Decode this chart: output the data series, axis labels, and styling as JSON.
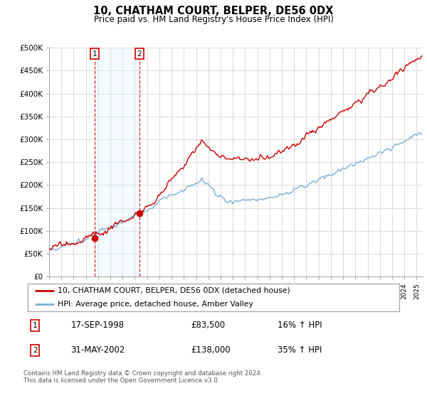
{
  "title": "10, CHATHAM COURT, BELPER, DE56 0DX",
  "subtitle": "Price paid vs. HM Land Registry's House Price Index (HPI)",
  "property_label": "10, CHATHAM COURT, BELPER, DE56 0DX (detached house)",
  "hpi_label": "HPI: Average price, detached house, Amber Valley",
  "sale1_date": "17-SEP-1998",
  "sale1_price": 83500,
  "sale1_hpi": "16% ↑ HPI",
  "sale2_date": "31-MAY-2002",
  "sale2_price": 138000,
  "sale2_hpi": "35% ↑ HPI",
  "footnote": "Contains HM Land Registry data © Crown copyright and database right 2024.\nThis data is licensed under the Open Government Licence v3.0.",
  "property_color": "#cc0000",
  "hpi_color": "#7ab0d4",
  "shade_color": "#ddeeff",
  "ylim": [
    0,
    500000
  ],
  "yticks": [
    0,
    50000,
    100000,
    150000,
    200000,
    250000,
    300000,
    350000,
    400000,
    450000,
    500000
  ],
  "xlim_start": 1995.0,
  "xlim_end": 2025.5
}
